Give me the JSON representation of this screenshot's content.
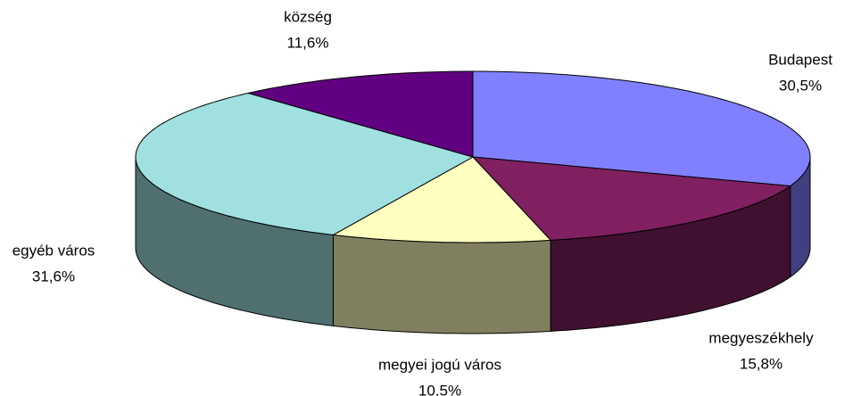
{
  "chart_data": {
    "type": "pie3d",
    "categories": [
      "Budapest",
      "megyeszékhely",
      "megyei jogú város",
      "egyéb város",
      "község"
    ],
    "values": [
      30.5,
      15.8,
      10.5,
      31.6,
      11.6
    ],
    "value_labels": [
      "30,5%",
      "15,8%",
      "10,5%",
      "31,6%",
      "11,6%"
    ],
    "colors": [
      "#8080ff",
      "#802060",
      "#ffffc0",
      "#a0e0e0",
      "#600080"
    ]
  }
}
